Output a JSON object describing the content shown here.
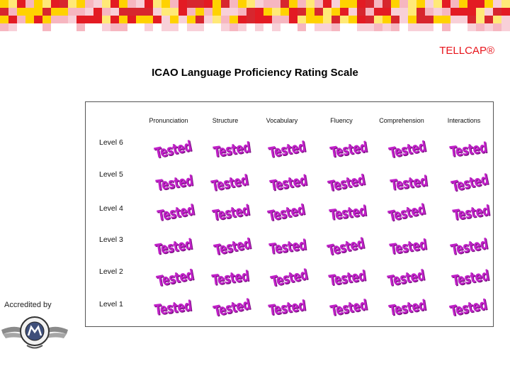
{
  "brand": "TELLCAP®",
  "title": "ICAO Language Proficiency Rating Scale",
  "columns": [
    "Pronunciation",
    "Structure",
    "Vocabulary",
    "Fluency",
    "Comprehension",
    "Interactions"
  ],
  "rows": [
    "Level 6",
    "Level 5",
    "Level 4",
    "Level 3",
    "Level 2",
    "Level 1"
  ],
  "cell_stamp": "Tested",
  "accredited_label": "Accredited by",
  "colors": {
    "brand_red": "#e8141b",
    "stamp_purple": "#c020c8",
    "mosaic": [
      "#e31b23",
      "#f6b6c0",
      "#ffd200",
      "#ffe978",
      "#f8d0d8",
      "#d7262e"
    ]
  }
}
